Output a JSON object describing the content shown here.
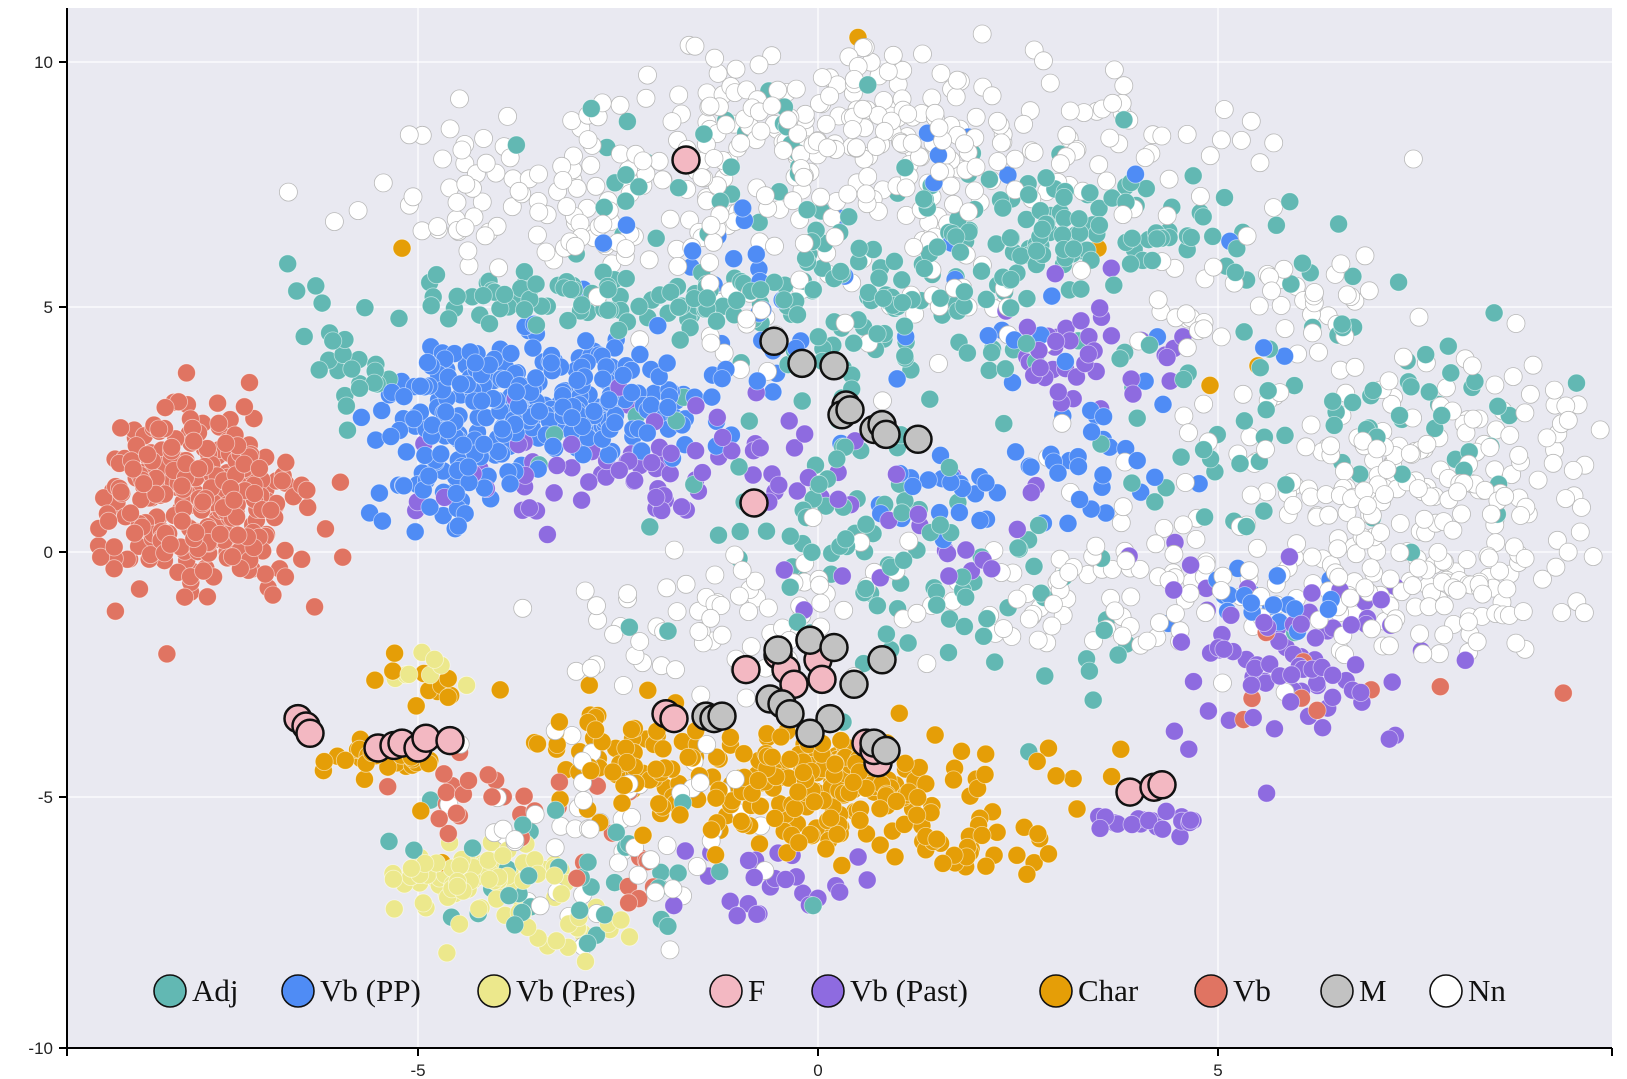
{
  "chart_data": {
    "type": "scatter",
    "title": "",
    "xlabel": "",
    "ylabel": "",
    "xlim": [
      -9.3,
      10.0
    ],
    "ylim": [
      -10,
      11
    ],
    "x_ticks": [
      -5,
      0,
      5
    ],
    "y_ticks": [
      -10,
      -5,
      0,
      5,
      10
    ],
    "x_tick_labels": [
      "-5",
      "0",
      "5"
    ],
    "y_tick_labels": [
      "-10",
      "-5",
      "0",
      "5",
      "10"
    ],
    "grid": true,
    "legend_position": "bottom",
    "background": "#e9e9f1",
    "series": [
      {
        "name": "Adj",
        "color": "#62b8b3",
        "highlighted": false,
        "clusters": [
          {
            "cx": -3.0,
            "cy": 5.2,
            "sx": 1.5,
            "sy": 0.35,
            "n": 90
          },
          {
            "cx": 1.0,
            "cy": 5.0,
            "sx": 1.6,
            "sy": 0.9,
            "n": 120
          },
          {
            "cx": 3.2,
            "cy": 6.5,
            "sx": 1.3,
            "sy": 0.6,
            "n": 110
          },
          {
            "cx": 6.5,
            "cy": 3.0,
            "sx": 1.6,
            "sy": 1.4,
            "n": 80
          },
          {
            "cx": 0.3,
            "cy": 0.5,
            "sx": 1.4,
            "sy": 1.2,
            "n": 70
          },
          {
            "cx": -3.0,
            "cy": -6.5,
            "sx": 1.0,
            "sy": 0.8,
            "n": 40
          },
          {
            "cx": 2.0,
            "cy": -1.5,
            "sx": 1.5,
            "sy": 1.2,
            "n": 40
          },
          {
            "cx": -5.8,
            "cy": 3.8,
            "sx": 0.4,
            "sy": 0.4,
            "n": 20
          },
          {
            "cx": -0.8,
            "cy": 8.0,
            "sx": 1.6,
            "sy": 0.8,
            "n": 40
          }
        ]
      },
      {
        "name": "Vb (PP)",
        "color": "#4f8cf5",
        "highlighted": false,
        "clusters": [
          {
            "cx": -3.4,
            "cy": 3.1,
            "sx": 1.0,
            "sy": 0.6,
            "n": 260
          },
          {
            "cx": -4.5,
            "cy": 1.6,
            "sx": 0.5,
            "sy": 0.6,
            "n": 50
          },
          {
            "cx": 3.2,
            "cy": 1.5,
            "sx": 0.6,
            "sy": 0.8,
            "n": 30
          },
          {
            "cx": 5.5,
            "cy": -1.0,
            "sx": 0.6,
            "sy": 0.4,
            "n": 20
          },
          {
            "cx": 0.0,
            "cy": 5.0,
            "sx": 2.0,
            "sy": 1.5,
            "n": 60
          },
          {
            "cx": 1.5,
            "cy": 1.0,
            "sx": 0.5,
            "sy": 0.5,
            "n": 20
          }
        ]
      },
      {
        "name": "Vb (Pres)",
        "color": "#ece88c",
        "highlighted": false,
        "clusters": [
          {
            "cx": -4.2,
            "cy": -6.6,
            "sx": 0.5,
            "sy": 0.3,
            "n": 90
          },
          {
            "cx": -3.4,
            "cy": -7.5,
            "sx": 0.5,
            "sy": 0.4,
            "n": 25
          },
          {
            "cx": -4.8,
            "cy": -2.5,
            "sx": 0.4,
            "sy": 0.3,
            "n": 8
          }
        ]
      },
      {
        "name": "F",
        "color": "#f3b8c2",
        "highlighted": true,
        "points": [
          [
            -1.65,
            8.0
          ],
          [
            -0.8,
            1.0
          ],
          [
            -6.5,
            -3.4
          ],
          [
            -6.4,
            -3.55
          ],
          [
            -6.35,
            -3.7
          ],
          [
            -5.5,
            -4.0
          ],
          [
            -5.3,
            -3.95
          ],
          [
            -5.2,
            -3.9
          ],
          [
            -5.0,
            -4.0
          ],
          [
            -4.9,
            -3.8
          ],
          [
            -4.6,
            -3.85
          ],
          [
            -1.9,
            -3.3
          ],
          [
            -1.8,
            -3.4
          ],
          [
            -0.9,
            -2.4
          ],
          [
            -0.5,
            -2.1
          ],
          [
            -0.4,
            -2.4
          ],
          [
            -0.1,
            -1.8
          ],
          [
            0.0,
            -2.2
          ],
          [
            0.05,
            -2.6
          ],
          [
            0.6,
            -3.9
          ],
          [
            0.75,
            -4.3
          ],
          [
            3.9,
            -4.9
          ],
          [
            4.2,
            -4.8
          ],
          [
            4.3,
            -4.75
          ],
          [
            0.7,
            -4.05
          ],
          [
            -0.3,
            -2.7
          ]
        ]
      },
      {
        "name": "Vb (Past)",
        "color": "#8e6be0",
        "highlighted": false,
        "clusters": [
          {
            "cx": -2.2,
            "cy": 1.8,
            "sx": 1.4,
            "sy": 0.6,
            "n": 80
          },
          {
            "cx": 6.0,
            "cy": -2.2,
            "sx": 0.8,
            "sy": 0.9,
            "n": 80
          },
          {
            "cx": 3.2,
            "cy": 3.8,
            "sx": 0.7,
            "sy": 0.6,
            "n": 40
          },
          {
            "cx": 4.3,
            "cy": -5.5,
            "sx": 0.4,
            "sy": 0.1,
            "n": 20
          },
          {
            "cx": -0.8,
            "cy": -6.8,
            "sx": 0.8,
            "sy": 0.4,
            "n": 25
          },
          {
            "cx": 1.5,
            "cy": 0.5,
            "sx": 1.2,
            "sy": 0.8,
            "n": 25
          }
        ]
      },
      {
        "name": "Char",
        "color": "#e59e07",
        "highlighted": false,
        "clusters": [
          {
            "cx": 0.0,
            "cy": -4.8,
            "sx": 1.2,
            "sy": 0.55,
            "n": 230
          },
          {
            "cx": -2.5,
            "cy": -4.0,
            "sx": 0.6,
            "sy": 0.5,
            "n": 50
          },
          {
            "cx": -5.5,
            "cy": -4.2,
            "sx": 0.5,
            "sy": 0.2,
            "n": 30
          },
          {
            "cx": -4.8,
            "cy": -2.8,
            "sx": 0.4,
            "sy": 0.4,
            "n": 12
          },
          {
            "cx": 1.9,
            "cy": -6.0,
            "sx": 0.5,
            "sy": 0.4,
            "n": 30
          }
        ],
        "points": [
          [
            0.5,
            10.5
          ],
          [
            -5.2,
            6.2
          ],
          [
            3.5,
            6.2
          ],
          [
            5.5,
            3.8
          ],
          [
            4.9,
            3.4
          ]
        ]
      },
      {
        "name": "Vb",
        "color": "#e07462",
        "highlighted": false,
        "clusters": [
          {
            "cx": -7.8,
            "cy": 1.0,
            "sx": 0.7,
            "sy": 0.95,
            "n": 330
          },
          {
            "cx": -4.0,
            "cy": -5.0,
            "sx": 0.7,
            "sy": 0.5,
            "n": 25
          },
          {
            "cx": -2.5,
            "cy": -6.5,
            "sx": 0.4,
            "sy": 0.4,
            "n": 10
          },
          {
            "cx": 6.5,
            "cy": -2.5,
            "sx": 1.2,
            "sy": 0.6,
            "n": 10
          }
        ]
      },
      {
        "name": "M",
        "color": "#c2c2c2",
        "highlighted": true,
        "points": [
          [
            -0.55,
            4.3
          ],
          [
            -0.2,
            3.85
          ],
          [
            0.2,
            3.8
          ],
          [
            0.35,
            3.0
          ],
          [
            0.3,
            2.8
          ],
          [
            0.4,
            2.9
          ],
          [
            0.7,
            2.5
          ],
          [
            0.8,
            2.6
          ],
          [
            0.85,
            2.4
          ],
          [
            1.25,
            2.3
          ],
          [
            -0.5,
            -2.0
          ],
          [
            -0.1,
            -1.8
          ],
          [
            0.2,
            -1.95
          ],
          [
            0.8,
            -2.2
          ],
          [
            -0.6,
            -3.0
          ],
          [
            -0.45,
            -3.1
          ],
          [
            -0.35,
            -3.3
          ],
          [
            0.45,
            -2.7
          ],
          [
            0.15,
            -3.4
          ],
          [
            -0.1,
            -3.7
          ],
          [
            -1.4,
            -3.35
          ],
          [
            -1.3,
            -3.4
          ],
          [
            -1.2,
            -3.35
          ],
          [
            0.7,
            -3.9
          ],
          [
            0.85,
            -4.05
          ]
        ]
      },
      {
        "name": "Nn",
        "color": "#ffffff",
        "highlighted": false,
        "clusters": [
          {
            "cx": 0.5,
            "cy": 8.4,
            "sx": 2.2,
            "sy": 0.9,
            "n": 300
          },
          {
            "cx": 7.5,
            "cy": 1.8,
            "sx": 1.4,
            "sy": 1.4,
            "n": 220
          },
          {
            "cx": 7.5,
            "cy": -0.8,
            "sx": 1.0,
            "sy": 0.7,
            "n": 100
          },
          {
            "cx": -3.0,
            "cy": 7.0,
            "sx": 1.3,
            "sy": 0.7,
            "n": 90
          },
          {
            "cx": 3.5,
            "cy": -0.8,
            "sx": 1.1,
            "sy": 0.8,
            "n": 80
          },
          {
            "cx": -1.2,
            "cy": -1.4,
            "sx": 0.9,
            "sy": 0.7,
            "n": 70
          },
          {
            "cx": -2.7,
            "cy": -5.6,
            "sx": 0.9,
            "sy": 1.2,
            "n": 60
          },
          {
            "cx": 0.3,
            "cy": 5.5,
            "sx": 1.5,
            "sy": 1.0,
            "n": 60
          },
          {
            "cx": 5.5,
            "cy": 5.3,
            "sx": 0.8,
            "sy": 0.5,
            "n": 40
          }
        ]
      }
    ]
  }
}
